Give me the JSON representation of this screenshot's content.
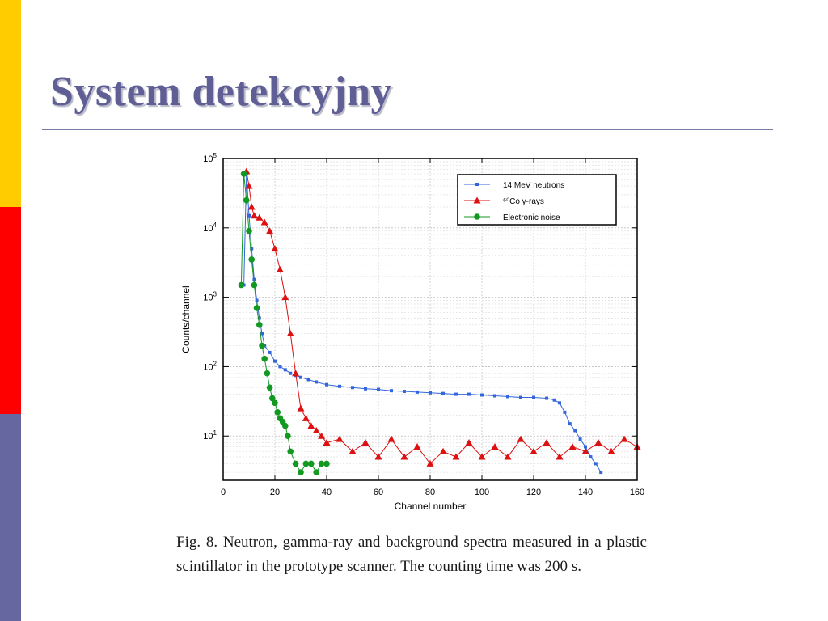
{
  "slide": {
    "title": "System detekcyjny",
    "caption": "Fig. 8.  Neutron, gamma-ray and background spectra measured in a plastic scintillator in the prototype scanner. The counting time was 200 s."
  },
  "colors": {
    "title": "#5f5f96",
    "rule": "#7a7aa8",
    "bar_yellow": "#ffcc00",
    "bar_red": "#ff0000",
    "bar_blue": "#6666a0"
  },
  "chart_data": {
    "type": "scatter",
    "xlabel": "Channel number",
    "ylabel": "Counts/channel",
    "xlim": [
      0,
      160
    ],
    "ylim": [
      2.3,
      100000
    ],
    "yscale": "log",
    "grid": true,
    "legend_position": "top-right",
    "x_ticks": [
      0,
      20,
      40,
      60,
      80,
      100,
      120,
      140,
      160
    ],
    "y_ticks": [
      {
        "value": 10,
        "base": "10",
        "exp": "1"
      },
      {
        "value": 100,
        "base": "10",
        "exp": "2"
      },
      {
        "value": 1000,
        "base": "10",
        "exp": "3"
      },
      {
        "value": 10000,
        "base": "10",
        "exp": "4"
      },
      {
        "value": 100000,
        "base": "10",
        "exp": "5"
      }
    ],
    "series": [
      {
        "name": "14 MeV neutrons",
        "color": "#3366dd",
        "marker": "square",
        "x": [
          8,
          9,
          10,
          11,
          12,
          13,
          14,
          15,
          16,
          18,
          20,
          22,
          24,
          26,
          28,
          30,
          33,
          36,
          40,
          45,
          50,
          55,
          60,
          65,
          70,
          75,
          80,
          85,
          90,
          95,
          100,
          105,
          110,
          115,
          120,
          125,
          128,
          130,
          132,
          134,
          136,
          138,
          140,
          142,
          144,
          146
        ],
        "y": [
          1500,
          60000,
          15000,
          5000,
          1800,
          900,
          500,
          300,
          200,
          160,
          120,
          100,
          90,
          80,
          75,
          70,
          65,
          60,
          55,
          52,
          50,
          48,
          47,
          45,
          44,
          43,
          42,
          41,
          40,
          40,
          39,
          38,
          37,
          36,
          36,
          35,
          33,
          30,
          22,
          15,
          12,
          9,
          7,
          5,
          4,
          3
        ]
      },
      {
        "name": "⁶⁰Co γ-rays",
        "color": "#dd1111",
        "marker": "triangle",
        "x": [
          9,
          10,
          11,
          12,
          14,
          16,
          18,
          20,
          22,
          24,
          26,
          28,
          30,
          32,
          34,
          36,
          38,
          40,
          45,
          50,
          55,
          60,
          65,
          70,
          75,
          80,
          85,
          90,
          95,
          100,
          105,
          110,
          115,
          120,
          125,
          130,
          135,
          140,
          145,
          150,
          155,
          160
        ],
        "y": [
          65000,
          40000,
          20000,
          15000,
          14000,
          12000,
          9000,
          5000,
          2500,
          1000,
          300,
          80,
          25,
          18,
          14,
          12,
          10,
          8,
          9,
          6,
          8,
          5,
          9,
          5,
          7,
          4,
          6,
          5,
          8,
          5,
          7,
          5,
          9,
          6,
          8,
          5,
          7,
          6,
          8,
          6,
          9,
          7
        ]
      },
      {
        "name": "Electronic noise",
        "color": "#119922",
        "marker": "circle",
        "x": [
          7,
          8,
          9,
          10,
          11,
          12,
          13,
          14,
          15,
          16,
          17,
          18,
          19,
          20,
          21,
          22,
          23,
          24,
          25,
          26,
          28,
          30,
          32,
          34,
          36,
          38,
          40
        ],
        "y": [
          1500,
          60000,
          25000,
          9000,
          3500,
          1500,
          700,
          400,
          200,
          130,
          80,
          50,
          35,
          30,
          22,
          18,
          16,
          14,
          10,
          6,
          4,
          3,
          4,
          4,
          3,
          4,
          4
        ]
      }
    ]
  }
}
